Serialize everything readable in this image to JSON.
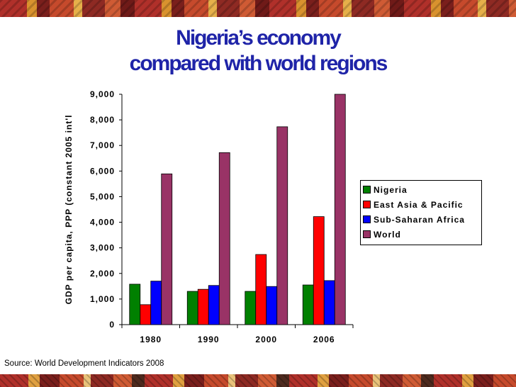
{
  "title": {
    "line1": "Nigeria’s economy",
    "line2": "compared with world regions"
  },
  "source": "Source: World Development Indicators 2008",
  "chart_data": {
    "type": "bar",
    "ylabel": "GDP per capita, PPP (constant 2005 int'l",
    "xlabel": "",
    "ylim": [
      0,
      9000
    ],
    "yticks": [
      0,
      1000,
      2000,
      3000,
      4000,
      5000,
      6000,
      7000,
      8000,
      9000
    ],
    "ytick_labels": [
      "0",
      "1,000",
      "2,000",
      "3,000",
      "4,000",
      "5,000",
      "6,000",
      "7,000",
      "8,000",
      "9,000"
    ],
    "categories": [
      "1980",
      "1990",
      "2000",
      "2006"
    ],
    "grid": false,
    "legend": "right",
    "series": [
      {
        "name": "Nigeria",
        "color": "#008000",
        "values": [
          1580,
          1300,
          1300,
          1550
        ]
      },
      {
        "name": "East Asia & Pacific",
        "color": "#ff0000",
        "values": [
          780,
          1380,
          2740,
          4220
        ]
      },
      {
        "name": "Sub-Saharan Africa",
        "color": "#0000ff",
        "values": [
          1700,
          1530,
          1490,
          1720
        ]
      },
      {
        "name": "World",
        "color": "#993366",
        "values": [
          5890,
          6720,
          7730,
          9000
        ]
      }
    ]
  }
}
